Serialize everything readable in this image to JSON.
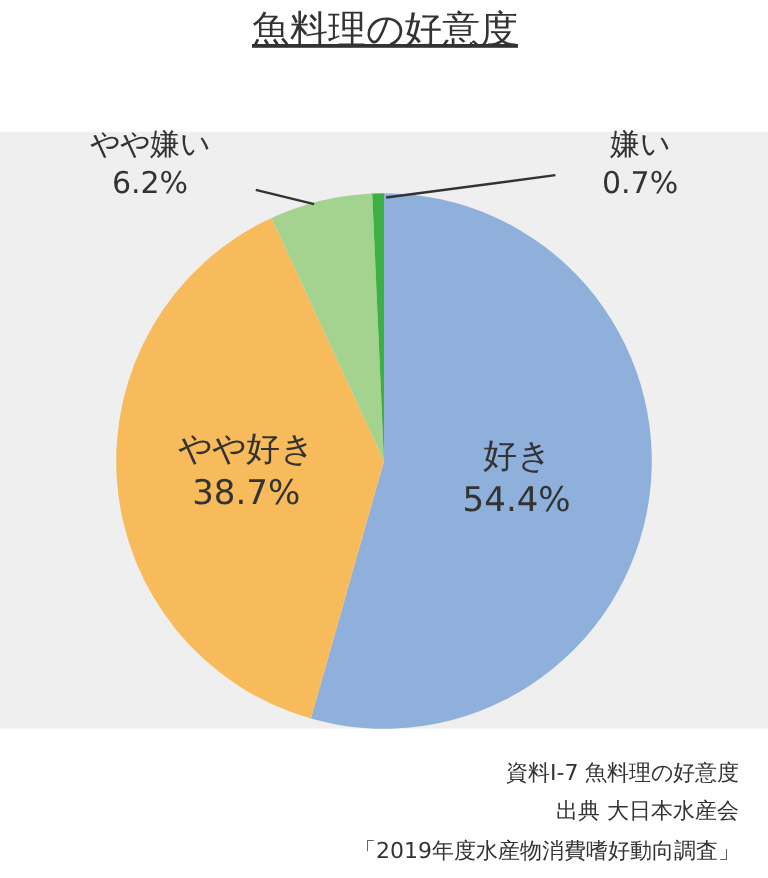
{
  "chart_data": {
    "type": "pie",
    "title": "魚料理の好意度",
    "categories": [
      "好き",
      "やや好き",
      "やや嫌い",
      "嫌い"
    ],
    "values": [
      54.4,
      38.7,
      6.2,
      0.7
    ],
    "colors": [
      "#8fb0db",
      "#f8bb5c",
      "#a3d38f",
      "#3cb043"
    ],
    "value_labels": [
      "54.4%",
      "38.7%",
      "6.2%",
      "0.7%"
    ],
    "annotations": [
      "資料I-7 魚料理の好意度",
      "出典 大日本水産会",
      "「2019年度水産物消費嗜好動向調査」"
    ]
  }
}
